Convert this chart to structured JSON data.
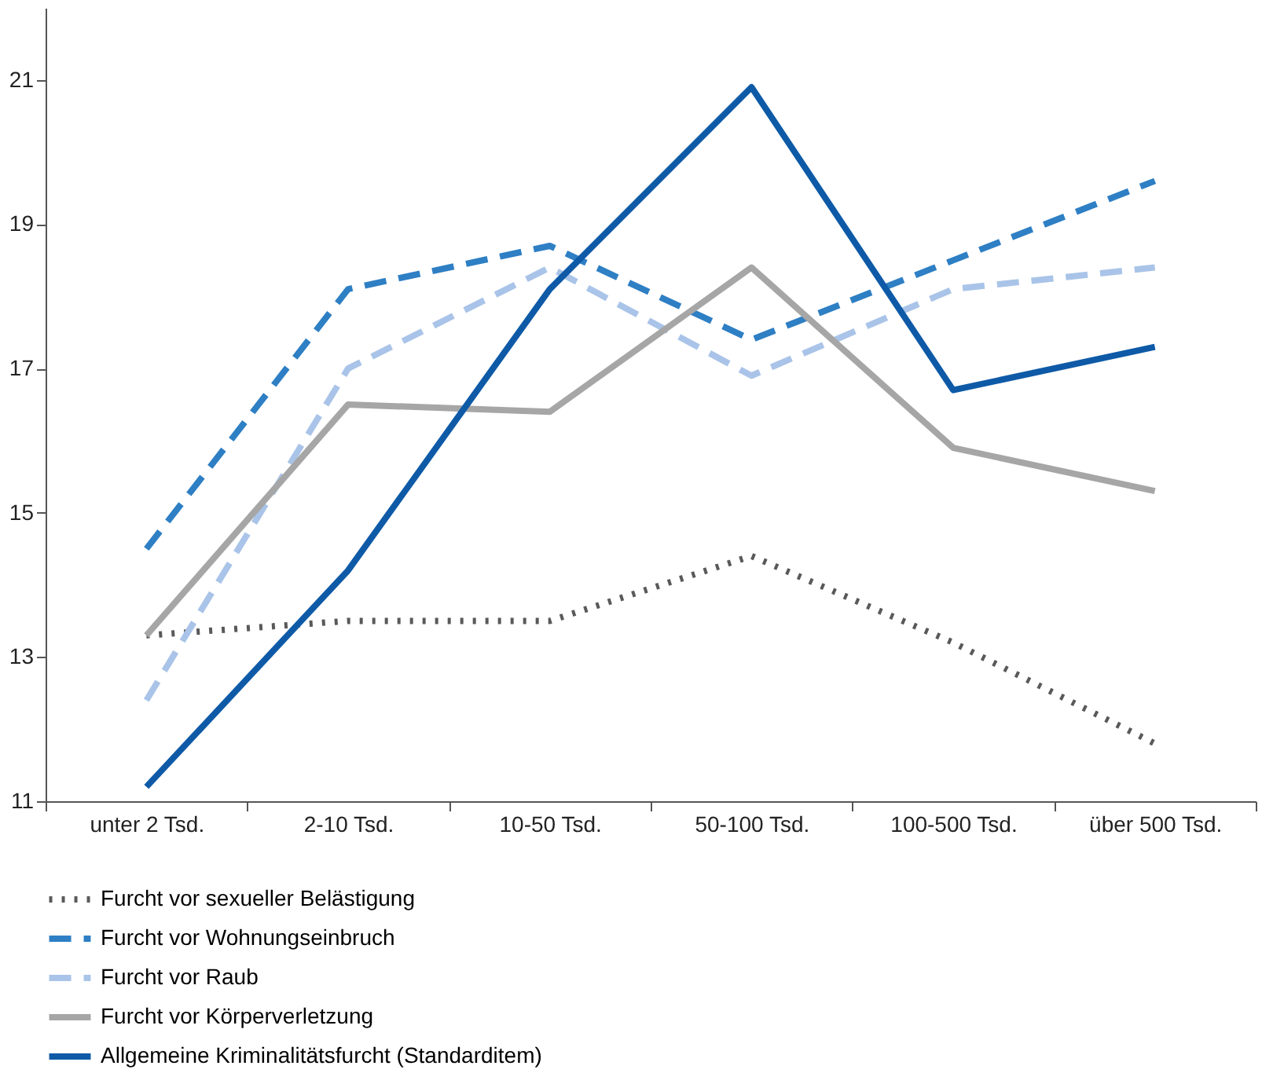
{
  "chart_data": {
    "type": "line",
    "categories": [
      "unter 2 Tsd.",
      "2-10 Tsd.",
      "10-50 Tsd.",
      "50-100 Tsd.",
      "100-500 Tsd.",
      "über 500 Tsd."
    ],
    "series": [
      {
        "name": "Furcht vor sexueller Belästigung",
        "color": "#595959",
        "line_style": "dotted",
        "values": [
          13.3,
          13.5,
          13.5,
          14.4,
          13.2,
          11.8
        ]
      },
      {
        "name": "Furcht vor Wohnungseinbruch",
        "color": "#2e7fc4",
        "line_style": "dashed",
        "values": [
          14.5,
          18.1,
          18.7,
          17.4,
          18.5,
          19.6
        ]
      },
      {
        "name": "Furcht vor Raub",
        "color": "#a9c4e8",
        "line_style": "dashed",
        "values": [
          12.4,
          17.0,
          18.4,
          16.9,
          18.1,
          18.4
        ]
      },
      {
        "name": "Furcht vor Körperverletzung",
        "color": "#a6a6a6",
        "line_style": "solid",
        "values": [
          13.3,
          16.5,
          16.4,
          18.4,
          15.9,
          15.3
        ]
      },
      {
        "name": "Allgemeine Kriminalitätsfurcht (Standarditem)",
        "color": "#0e5aa7",
        "line_style": "solid",
        "values": [
          11.2,
          14.2,
          18.1,
          20.9,
          16.7,
          17.3
        ]
      }
    ],
    "ylim": [
      11,
      22
    ],
    "yticks": [
      11,
      13,
      15,
      17,
      19,
      21
    ],
    "grid": false,
    "legend": "bottom",
    "marker": "none"
  }
}
